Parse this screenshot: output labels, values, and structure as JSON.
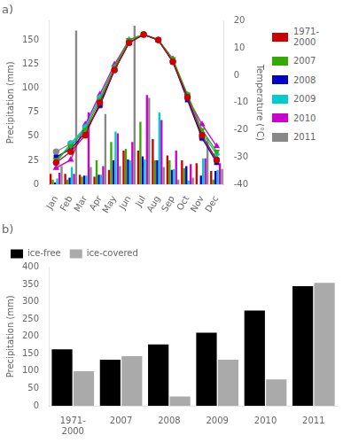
{
  "chart_data": [
    {
      "type": "bar",
      "title": "a)",
      "categories": [
        "Jan",
        "Feb",
        "Mar",
        "Apr",
        "May",
        "Jun",
        "Jul",
        "Aug",
        "Sep",
        "Oct",
        "Nov",
        "Dec"
      ],
      "ylabel": "Precipitation (mm)",
      "y2label": "Temperature (°C)",
      "series": [
        {
          "name": "1971-\n2000",
          "type": "bar",
          "color": "#cc0000",
          "values": [
            11,
            11,
            10,
            8,
            15,
            35,
            35,
            47,
            30,
            25,
            22,
            14
          ]
        },
        {
          "name": "2007",
          "type": "bar",
          "color": "#33aa00",
          "values": [
            5,
            5,
            8,
            25,
            44,
            37,
            65,
            25,
            25,
            17,
            0,
            5
          ]
        },
        {
          "name": "2008",
          "type": "bar",
          "color": "#0000cc",
          "values": [
            2,
            7,
            9,
            10,
            25,
            26,
            29,
            25,
            15,
            19,
            9,
            14
          ]
        },
        {
          "name": "2009",
          "type": "bar",
          "color": "#00cccc",
          "values": [
            6,
            18,
            9,
            10,
            55,
            25,
            26,
            75,
            16,
            4,
            27,
            15
          ]
        },
        {
          "name": "2010",
          "type": "bar",
          "color": "#cc00cc",
          "values": [
            12,
            11,
            75,
            19,
            53,
            44,
            93,
            67,
            35,
            21,
            27,
            22
          ]
        },
        {
          "name": "2011",
          "type": "bar",
          "color": "#888888",
          "values": [
            19,
            160,
            18,
            73,
            19,
            165,
            90,
            18,
            5,
            7,
            48,
            16
          ]
        },
        {
          "name": "1971-\n2000",
          "type": "line",
          "axis": "y2",
          "color": "#cc0000",
          "marker": "circle",
          "values": [
            -32,
            -28,
            -22,
            -10,
            2,
            12,
            15,
            13,
            5,
            -8,
            -22,
            -31
          ]
        },
        {
          "name": "2007",
          "type": "line",
          "axis": "y2",
          "color": "#33aa00",
          "marker": "triangle_down",
          "values": [
            -31,
            -26,
            -20,
            -9,
            3,
            13,
            15,
            13,
            6,
            -7,
            -20,
            -28
          ]
        },
        {
          "name": "2008",
          "type": "line",
          "axis": "y2",
          "color": "#0000cc",
          "marker": "square",
          "values": [
            -30,
            -27,
            -21,
            -11,
            2,
            12,
            15,
            13,
            5,
            -9,
            -23,
            -32
          ]
        },
        {
          "name": "2009",
          "type": "line",
          "axis": "y2",
          "color": "#00cccc",
          "marker": "diamond",
          "values": [
            -32,
            -25,
            -19,
            -8,
            3,
            13,
            15,
            13,
            5,
            -7,
            -21,
            -29
          ]
        },
        {
          "name": "2010",
          "type": "line",
          "axis": "y2",
          "color": "#cc00cc",
          "marker": "triangle_up",
          "values": [
            -34,
            -31,
            -18,
            -7,
            4,
            13,
            15,
            13,
            6,
            -8,
            -18,
            -26
          ]
        },
        {
          "name": "2011",
          "type": "line",
          "axis": "y2",
          "color": "#888888",
          "marker": "circle",
          "values": [
            -28,
            -25,
            -20,
            -11,
            2,
            12,
            15,
            13,
            5,
            -8,
            -23,
            -31
          ]
        }
      ],
      "ylim": [
        0,
        170
      ],
      "yticks": [
        0,
        25,
        50,
        75,
        100,
        125,
        150
      ],
      "y2lim": [
        -40,
        20
      ],
      "y2ticks": [
        20,
        10,
        0,
        -10,
        -20,
        -30,
        -40
      ],
      "grid": false,
      "legend": "right"
    },
    {
      "type": "bar",
      "title": "b)",
      "categories": [
        "1971-\n2000",
        "2007",
        "2008",
        "2009",
        "2010",
        "2011"
      ],
      "ylabel": "Precipitation (mm)",
      "series": [
        {
          "name": "ice-free",
          "color": "black",
          "values": [
            163,
            133,
            177,
            211,
            275,
            345
          ]
        },
        {
          "name": "ice-covered",
          "color": "#aaaaaa",
          "values": [
            100,
            143,
            27,
            133,
            76,
            355
          ]
        }
      ],
      "ylim": [
        0,
        400
      ],
      "yticks": [
        0,
        50,
        100,
        150,
        200,
        250,
        300,
        350,
        400
      ],
      "grid": false,
      "legend": "upper-left"
    }
  ]
}
